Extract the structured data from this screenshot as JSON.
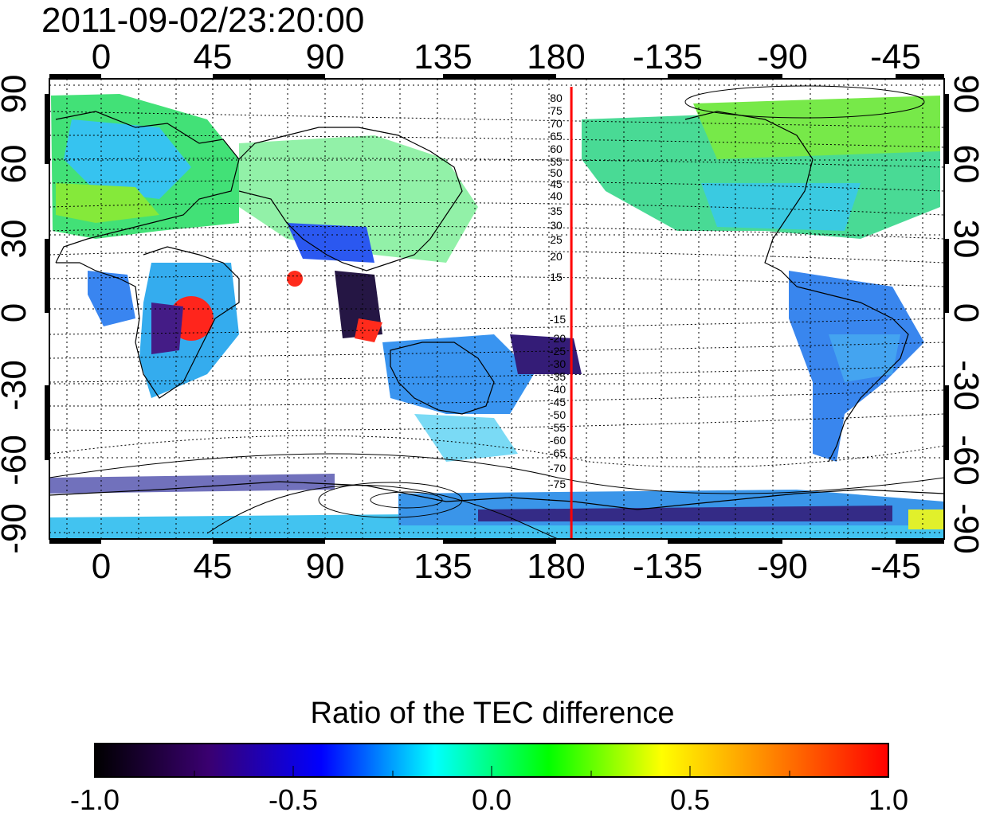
{
  "timestamp": "2011-09-02/23:20:00",
  "x_ticks_top": [
    "0",
    "45",
    "90",
    "135",
    "180",
    "-135",
    "-90",
    "-45"
  ],
  "x_ticks_bottom": [
    "0",
    "45",
    "90",
    "135",
    "180",
    "-135",
    "-90",
    "-45"
  ],
  "y_ticks_left": [
    "90",
    "60",
    "30",
    "0",
    "-30",
    "-60",
    "-90"
  ],
  "y_ticks_right": [
    "90",
    "60",
    "30",
    "0",
    "-30",
    "-60",
    "-90"
  ],
  "contour_labels_north": [
    "80",
    "75",
    "70",
    "65",
    "60",
    "55",
    "50",
    "45",
    "40",
    "35",
    "30",
    "25",
    "20",
    "15"
  ],
  "contour_labels_south": [
    "-15",
    "-20",
    "-25",
    "-30",
    "-35",
    "-40",
    "-45",
    "-50",
    "-55",
    "-60",
    "-65",
    "-70",
    "-75"
  ],
  "terminator_longitude": 190,
  "terminator_color": "#ff0000",
  "colorbar": {
    "title": "Ratio of the TEC difference",
    "tick_labels": [
      "-1.0",
      "-0.5",
      "0.0",
      "0.5",
      "1.0"
    ],
    "range": [
      -1.0,
      1.0
    ],
    "colors": [
      "#000000",
      "#3a0070",
      "#0000ff",
      "#00ffff",
      "#00ff00",
      "#ffff00",
      "#ff8000",
      "#ff0000"
    ]
  },
  "map": {
    "lon_range": [
      -20,
      340
    ],
    "lat_range": [
      -95,
      95
    ],
    "grid": true
  }
}
